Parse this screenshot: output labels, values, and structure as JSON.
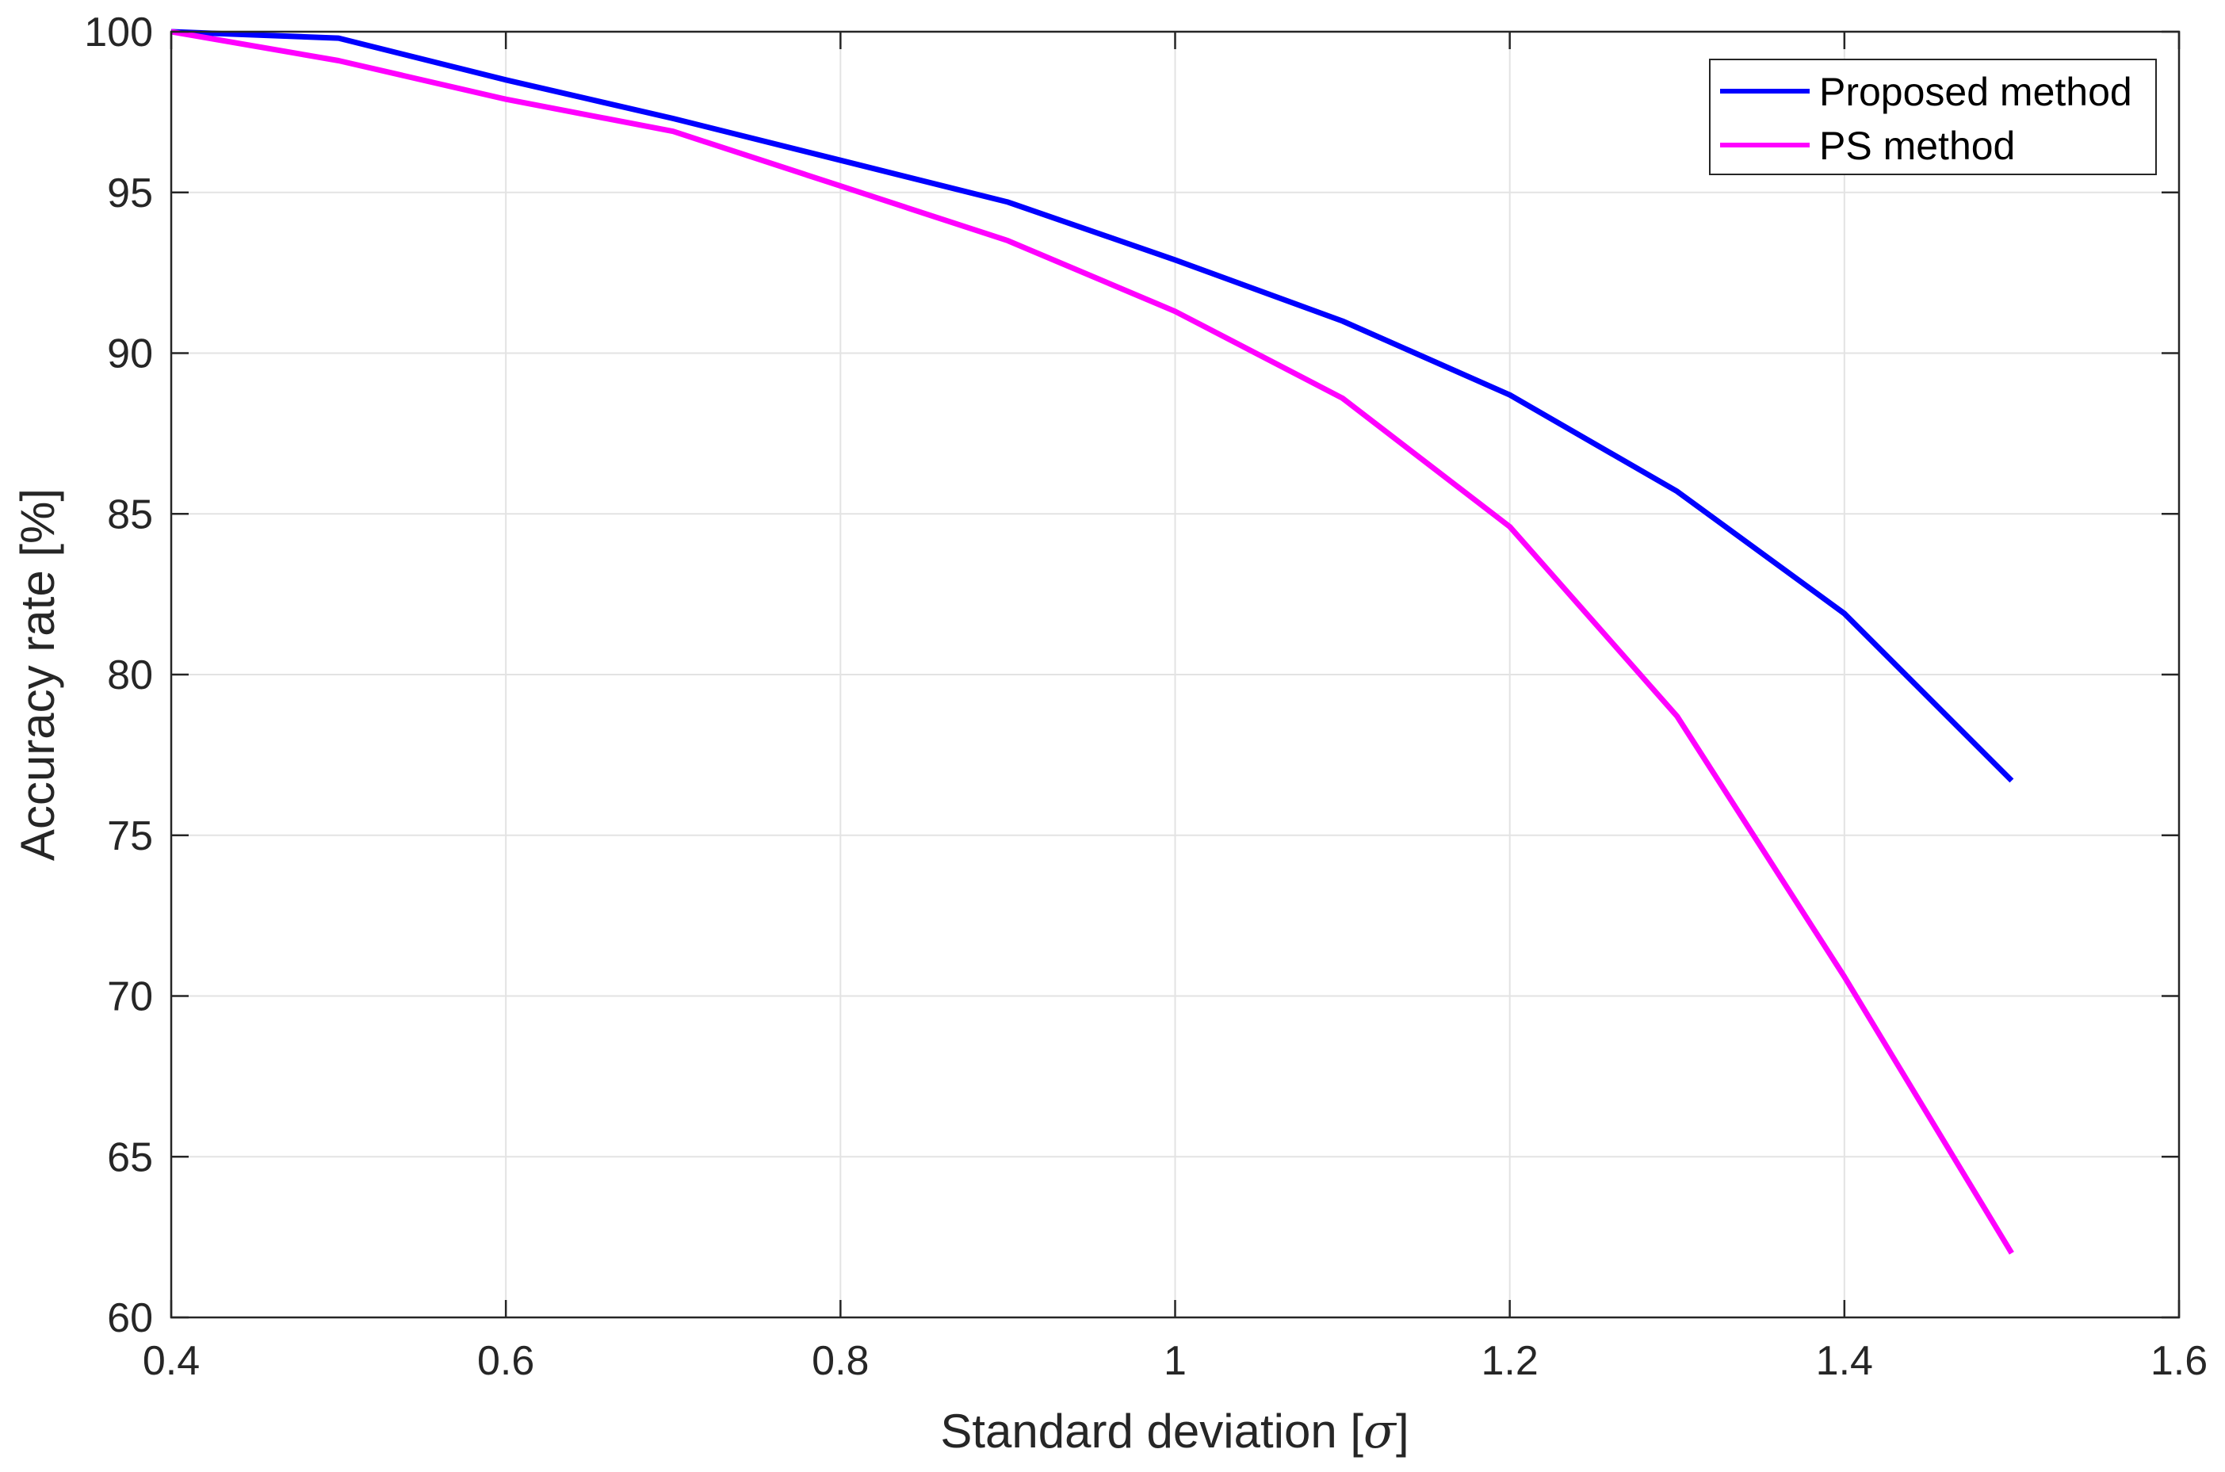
{
  "chart_data": {
    "type": "line",
    "title": "",
    "xlabel": "Standard deviation [",
    "xlabel_symbol": "σ",
    "xlabel_suffix": "]",
    "ylabel": "Accuracy rate [%]",
    "xlim": [
      0.4,
      1.6
    ],
    "ylim": [
      60,
      100
    ],
    "grid": true,
    "legend_position": "top-right",
    "x_ticks": [
      0.4,
      0.6,
      0.8,
      1.0,
      1.2,
      1.4,
      1.6
    ],
    "x_tick_labels": [
      "0.4",
      "0.6",
      "0.8",
      "1",
      "1.2",
      "1.4",
      "1.6"
    ],
    "y_ticks": [
      60,
      65,
      70,
      75,
      80,
      85,
      90,
      95,
      100
    ],
    "y_tick_labels": [
      "60",
      "65",
      "70",
      "75",
      "80",
      "85",
      "90",
      "95",
      "100"
    ],
    "x": [
      0.4,
      0.5,
      0.6,
      0.7,
      0.8,
      0.9,
      1.0,
      1.1,
      1.2,
      1.3,
      1.4,
      1.5
    ],
    "series": [
      {
        "name": "Proposed method",
        "color": "#0000ff",
        "values": [
          100.0,
          99.8,
          98.5,
          97.3,
          96.0,
          94.7,
          92.9,
          91.0,
          88.7,
          85.7,
          81.9,
          76.7
        ]
      },
      {
        "name": "PS method",
        "color": "#ff00ff",
        "values": [
          100.0,
          99.1,
          97.9,
          96.9,
          95.2,
          93.5,
          91.3,
          88.6,
          84.6,
          78.7,
          70.6,
          62.0
        ]
      }
    ]
  }
}
